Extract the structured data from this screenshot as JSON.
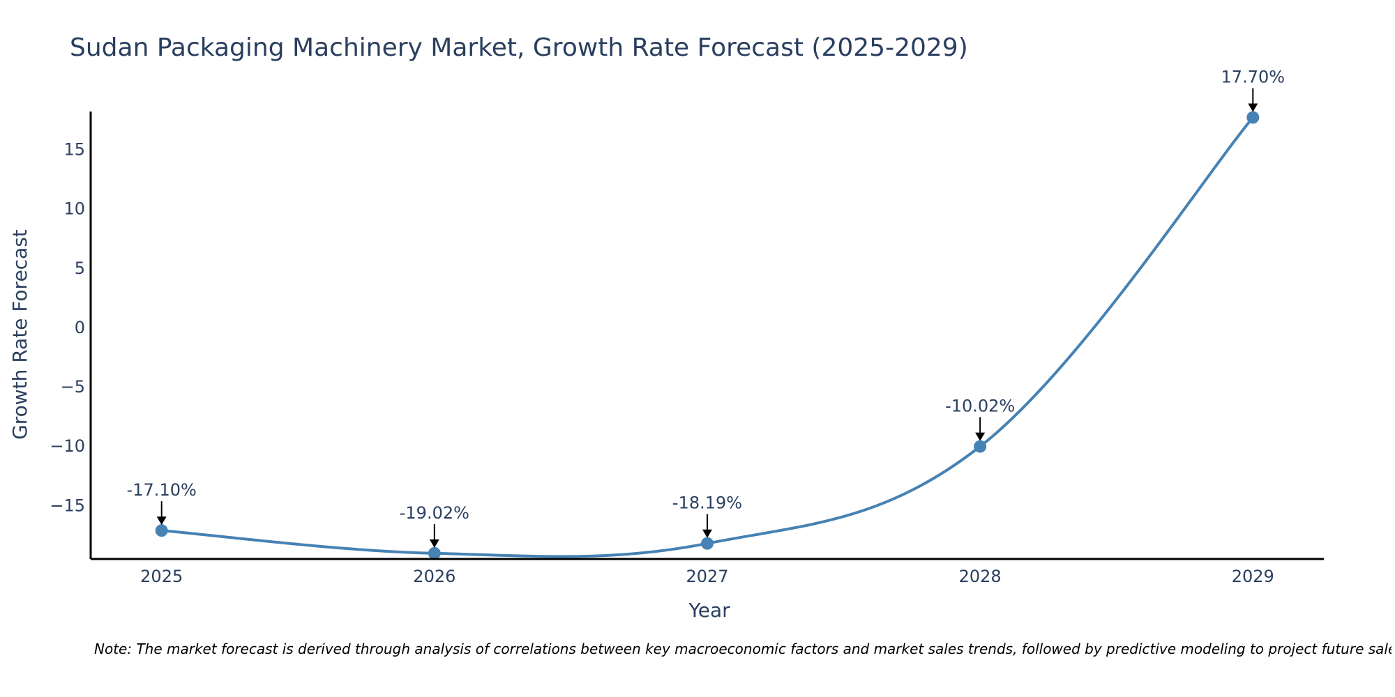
{
  "chart_data": {
    "type": "line",
    "title": "Sudan Packaging Machinery Market, Growth Rate Forecast (2025-2029)",
    "xlabel": "Year",
    "ylabel": "Growth Rate Forecast",
    "categories": [
      "2025",
      "2026",
      "2027",
      "2028",
      "2029"
    ],
    "series": [
      {
        "name": "Growth Rate Forecast",
        "values": [
          -17.1,
          -19.02,
          -18.19,
          -10.02,
          17.7
        ],
        "color": "#4682b4"
      }
    ],
    "data_labels": [
      "-17.10%",
      "-19.02%",
      "-18.19%",
      "-10.02%",
      "17.70%"
    ],
    "y_ticks": [
      -15,
      -10,
      -5,
      0,
      5,
      10,
      15
    ],
    "y_tick_labels": [
      "−15",
      "−10",
      "−5",
      "0",
      "5",
      "10",
      "15"
    ],
    "ylim": [
      -19.5,
      18.2
    ],
    "xlim": [
      2024.74,
      2029.26
    ],
    "grid": false,
    "legend": "none",
    "line_shape": "spline",
    "annotation_arrows": true
  },
  "note": "Note: The market forecast is derived through analysis of correlations between key macroeconomic factors and market sales trends, followed by predictive modeling to project future sales",
  "colors": {
    "line": "#4682b4",
    "marker": "#4682b4",
    "axis": "#000000",
    "text": "#2a3f5f",
    "arrow": "#000000"
  }
}
